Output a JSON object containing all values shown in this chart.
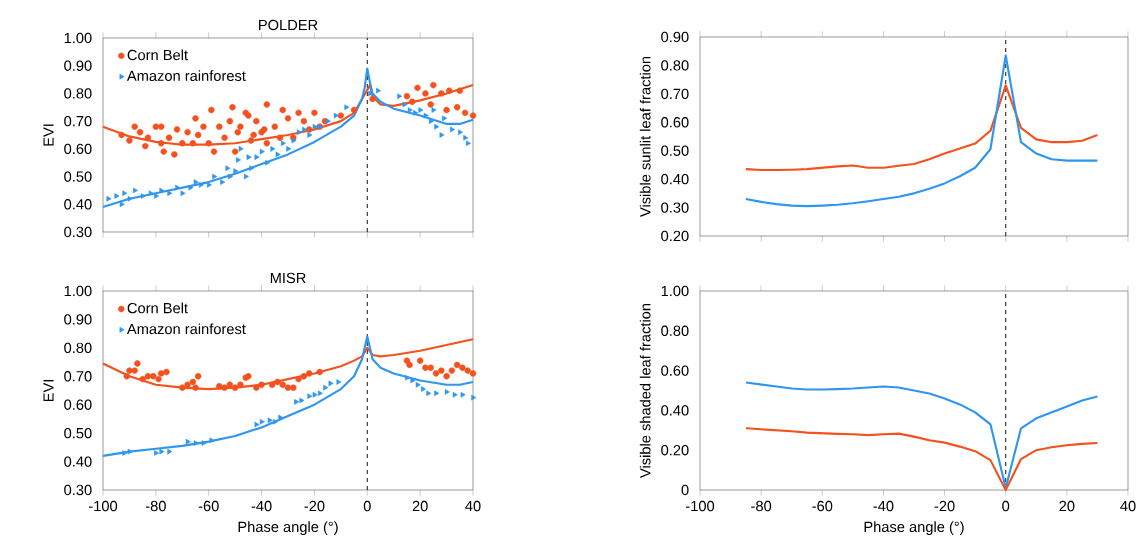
{
  "chart_data": [
    {
      "type": "scatter",
      "title": "POLDER",
      "ylabel": "EVI",
      "xlim": [
        -100,
        40
      ],
      "ylim": [
        0.3,
        1.0
      ],
      "xticks": [
        -100,
        -80,
        -60,
        -40,
        -20,
        0,
        20,
        40
      ],
      "yticks": [
        {
          "value": 0.3,
          "label": "0.30"
        },
        {
          "value": 0.4,
          "label": "0.40"
        },
        {
          "value": 0.5,
          "label": "0.50"
        },
        {
          "value": 0.6,
          "label": "0.60"
        },
        {
          "value": 0.7,
          "label": "0.70"
        },
        {
          "value": 0.8,
          "label": "0.80"
        },
        {
          "value": 0.9,
          "label": "0.90"
        },
        {
          "value": 1.0,
          "label": "1.00"
        }
      ],
      "tick_labels": "y",
      "legend": "top left",
      "ref_lines": [
        {
          "axis": "x",
          "value": 0,
          "color": "#222222",
          "line_style": "dashed"
        }
      ],
      "series": [
        {
          "name": "Corn Belt",
          "type": "scatter",
          "marker": "circle",
          "color": "#f4511e",
          "x": [
            -93,
            -90,
            -88,
            -86,
            -84,
            -83,
            -80,
            -78,
            -78,
            -77,
            -75,
            -73,
            -72,
            -70,
            -68,
            -66,
            -65,
            -64,
            -62,
            -60,
            -59,
            -58,
            -56,
            -54,
            -52,
            -51,
            -50,
            -49,
            -48,
            -46,
            -45,
            -44,
            -43,
            -42,
            -40,
            -39,
            -38,
            -38,
            -35,
            -33,
            -32,
            -30,
            -28,
            -26,
            -24,
            -22,
            -20,
            -18,
            -16,
            -10,
            -5,
            2,
            15,
            17,
            19,
            22,
            24,
            25,
            28,
            30,
            31,
            34,
            35,
            37,
            40
          ],
          "values": [
            0.65,
            0.63,
            0.68,
            0.66,
            0.61,
            0.64,
            0.68,
            0.68,
            0.62,
            0.59,
            0.64,
            0.58,
            0.67,
            0.62,
            0.66,
            0.62,
            0.71,
            0.65,
            0.68,
            0.62,
            0.74,
            0.59,
            0.68,
            0.64,
            0.7,
            0.75,
            0.59,
            0.66,
            0.68,
            0.73,
            0.72,
            0.63,
            0.65,
            0.7,
            0.66,
            0.67,
            0.62,
            0.76,
            0.68,
            0.64,
            0.74,
            0.71,
            0.64,
            0.73,
            0.7,
            0.67,
            0.73,
            0.68,
            0.7,
            0.72,
            0.74,
            0.78,
            0.79,
            0.77,
            0.82,
            0.8,
            0.76,
            0.83,
            0.8,
            0.74,
            0.81,
            0.75,
            0.81,
            0.73,
            0.72
          ]
        },
        {
          "name": "Amazon rainforest",
          "type": "scatter",
          "marker": "triangle",
          "color": "#2e96f0",
          "x": [
            -98,
            -95,
            -93,
            -92,
            -90,
            -88,
            -85,
            -82,
            -80,
            -78,
            -75,
            -72,
            -70,
            -67,
            -65,
            -63,
            -60,
            -58,
            -55,
            -53,
            -52,
            -50,
            -49,
            -48,
            -46,
            -45,
            -44,
            -42,
            -40,
            -38,
            -36,
            -34,
            -32,
            -30,
            -28,
            -26,
            -24,
            -22,
            -20,
            -18,
            -15,
            -12,
            -8,
            1,
            4,
            12,
            14,
            16,
            18,
            20,
            22,
            24,
            25,
            26,
            28,
            29,
            32,
            35,
            37,
            38
          ],
          "values": [
            0.42,
            0.43,
            0.4,
            0.44,
            0.42,
            0.45,
            0.43,
            0.44,
            0.43,
            0.45,
            0.44,
            0.46,
            0.44,
            0.46,
            0.48,
            0.47,
            0.47,
            0.5,
            0.48,
            0.53,
            0.5,
            0.52,
            0.56,
            0.6,
            0.5,
            0.57,
            0.53,
            0.57,
            0.59,
            0.55,
            0.6,
            0.58,
            0.62,
            0.6,
            0.63,
            0.66,
            0.67,
            0.65,
            0.68,
            0.68,
            0.7,
            0.72,
            0.75,
            0.8,
            0.81,
            0.79,
            0.76,
            0.74,
            0.73,
            0.74,
            0.72,
            0.7,
            0.74,
            0.68,
            0.65,
            0.71,
            0.67,
            0.66,
            0.64,
            0.62
          ]
        },
        {
          "type": "line",
          "color": "#f4511e",
          "x": [
            -100,
            -90,
            -80,
            -70,
            -60,
            -50,
            -40,
            -30,
            -20,
            -10,
            -5,
            -2,
            -1,
            0,
            1,
            2,
            5,
            10,
            20,
            30,
            40
          ],
          "values": [
            0.68,
            0.645,
            0.625,
            0.615,
            0.615,
            0.62,
            0.635,
            0.65,
            0.67,
            0.7,
            0.73,
            0.78,
            null,
            null,
            0.83,
            0.79,
            0.76,
            0.755,
            0.775,
            0.8,
            0.83
          ]
        },
        {
          "type": "line",
          "color": "#2e96f0",
          "x": [
            -100,
            -90,
            -80,
            -70,
            -60,
            -50,
            -40,
            -30,
            -20,
            -10,
            -5,
            -2,
            -1,
            0,
            1,
            2,
            5,
            10,
            20,
            30,
            35,
            40
          ],
          "values": [
            0.39,
            0.42,
            0.44,
            0.46,
            0.48,
            0.51,
            0.545,
            0.58,
            0.625,
            0.68,
            0.72,
            0.78,
            0.82,
            0.89,
            0.84,
            0.8,
            0.77,
            0.745,
            0.72,
            0.69,
            0.69,
            0.705
          ]
        }
      ]
    },
    {
      "type": "line",
      "ylabel": "Visible sunlit leaf fraction",
      "xlim": [
        -100,
        40
      ],
      "ylim": [
        0.2,
        0.9
      ],
      "xticks": [
        -100,
        -80,
        -60,
        -40,
        -20,
        0,
        20,
        40
      ],
      "yticks": [
        {
          "value": 0.2,
          "label": "0.20"
        },
        {
          "value": 0.3,
          "label": "0.30"
        },
        {
          "value": 0.4,
          "label": "0.40"
        },
        {
          "value": 0.5,
          "label": "0.50"
        },
        {
          "value": 0.6,
          "label": "0.60"
        },
        {
          "value": 0.7,
          "label": "0.70"
        },
        {
          "value": 0.8,
          "label": "0.80"
        },
        {
          "value": 0.9,
          "label": "0.90"
        }
      ],
      "tick_labels": "y",
      "ref_lines": [
        {
          "axis": "x",
          "value": 0,
          "color": "#222222",
          "line_style": "dashed"
        }
      ],
      "series": [
        {
          "color": "#f4511e",
          "x": [
            -85,
            -80,
            -75,
            -70,
            -65,
            -60,
            -55,
            -50,
            -45,
            -40,
            -35,
            -30,
            -25,
            -20,
            -15,
            -10,
            -5,
            0,
            5,
            10,
            15,
            20,
            25,
            30
          ],
          "values": [
            0.435,
            0.432,
            0.432,
            0.433,
            0.435,
            0.44,
            0.445,
            0.448,
            0.44,
            0.44,
            0.447,
            0.453,
            0.47,
            0.49,
            0.508,
            0.525,
            0.57,
            0.73,
            0.58,
            0.54,
            0.53,
            0.53,
            0.535,
            0.555
          ]
        },
        {
          "color": "#2e96f0",
          "x": [
            -85,
            -80,
            -75,
            -70,
            -65,
            -60,
            -55,
            -50,
            -45,
            -40,
            -35,
            -30,
            -25,
            -20,
            -15,
            -10,
            -5,
            0,
            5,
            10,
            15,
            20,
            25,
            30
          ],
          "values": [
            0.33,
            0.32,
            0.312,
            0.307,
            0.305,
            0.307,
            0.31,
            0.315,
            0.322,
            0.33,
            0.338,
            0.35,
            0.366,
            0.385,
            0.41,
            0.44,
            0.505,
            0.835,
            0.53,
            0.49,
            0.47,
            0.465,
            0.465,
            0.465
          ]
        }
      ]
    },
    {
      "type": "scatter",
      "title": "MISR",
      "xlabel": "Phase angle (°)",
      "ylabel": "EVI",
      "xlim": [
        -100,
        40
      ],
      "ylim": [
        0.3,
        1.0
      ],
      "xticks": [
        -100,
        -80,
        -60,
        -40,
        -20,
        0,
        20,
        40
      ],
      "yticks": [
        {
          "value": 0.3,
          "label": "0.30"
        },
        {
          "value": 0.4,
          "label": "0.40"
        },
        {
          "value": 0.5,
          "label": "0.50"
        },
        {
          "value": 0.6,
          "label": "0.60"
        },
        {
          "value": 0.7,
          "label": "0.70"
        },
        {
          "value": 0.8,
          "label": "0.80"
        },
        {
          "value": 0.9,
          "label": "0.90"
        },
        {
          "value": 1.0,
          "label": "1.00"
        }
      ],
      "legend": "top left",
      "ref_lines": [
        {
          "axis": "x",
          "value": 0,
          "color": "#222222",
          "line_style": "dashed"
        }
      ],
      "series": [
        {
          "name": "Corn Belt",
          "type": "scatter",
          "marker": "circle",
          "color": "#f4511e",
          "x": [
            -91,
            -90,
            -88,
            -87,
            -85,
            -83,
            -81,
            -79,
            -78,
            -76,
            -70,
            -68,
            -66,
            -65,
            -64,
            -56,
            -54,
            -52,
            -50,
            -48,
            -46,
            -45,
            -42,
            -40,
            -36,
            -34,
            -32,
            -30,
            -28,
            -26,
            -24,
            -22,
            -18,
            15,
            16,
            20,
            22,
            24,
            26,
            28,
            30,
            32,
            34,
            36,
            38,
            40
          ],
          "values": [
            0.7,
            0.72,
            0.72,
            0.745,
            0.69,
            0.7,
            0.7,
            0.69,
            0.71,
            0.715,
            0.66,
            0.67,
            0.68,
            0.66,
            0.7,
            0.665,
            0.66,
            0.67,
            0.66,
            0.67,
            0.695,
            0.7,
            0.66,
            0.67,
            0.67,
            0.68,
            0.67,
            0.66,
            0.66,
            0.69,
            0.7,
            0.71,
            0.715,
            0.755,
            0.74,
            0.755,
            0.73,
            0.73,
            0.71,
            0.72,
            0.7,
            0.72,
            0.74,
            0.73,
            0.72,
            0.71
          ]
        },
        {
          "name": "Amazon rainforest",
          "type": "scatter",
          "marker": "triangle",
          "color": "#2e96f0",
          "x": [
            -92,
            -90,
            -80,
            -78,
            -75,
            -68,
            -65,
            -62,
            -59,
            -42,
            -40,
            -37,
            -35,
            -33,
            -27,
            -25,
            -22,
            -20,
            -18,
            -16,
            -14,
            -11,
            15,
            17,
            19,
            21,
            23,
            26,
            30,
            33,
            36,
            40
          ],
          "values": [
            0.43,
            0.435,
            0.43,
            0.435,
            0.435,
            0.47,
            0.465,
            0.465,
            0.475,
            0.53,
            0.54,
            0.545,
            0.54,
            0.555,
            0.61,
            0.615,
            0.63,
            0.635,
            0.64,
            0.66,
            0.675,
            0.68,
            0.695,
            0.685,
            0.67,
            0.655,
            0.64,
            0.64,
            0.645,
            0.635,
            0.635,
            0.625
          ]
        },
        {
          "type": "line",
          "color": "#f4511e",
          "x": [
            -100,
            -90,
            -80,
            -70,
            -60,
            -50,
            -40,
            -30,
            -20,
            -10,
            -5,
            -2,
            0,
            2,
            5,
            10,
            20,
            30,
            40
          ],
          "values": [
            0.745,
            0.7,
            0.67,
            0.66,
            0.655,
            0.66,
            0.67,
            0.69,
            0.71,
            0.735,
            0.755,
            0.77,
            0.8,
            0.775,
            0.77,
            0.775,
            0.79,
            0.81,
            0.83
          ]
        },
        {
          "type": "line",
          "color": "#2e96f0",
          "x": [
            -100,
            -90,
            -80,
            -70,
            -60,
            -50,
            -40,
            -30,
            -20,
            -10,
            -5,
            -2,
            0,
            2,
            5,
            10,
            20,
            30,
            35,
            40
          ],
          "values": [
            0.42,
            0.435,
            0.445,
            0.455,
            0.47,
            0.49,
            0.52,
            0.56,
            0.6,
            0.655,
            0.7,
            0.76,
            0.84,
            0.76,
            0.73,
            0.71,
            0.685,
            0.67,
            0.67,
            0.68
          ]
        }
      ]
    },
    {
      "type": "line",
      "xlabel": "Phase angle (°)",
      "ylabel": "Visible shaded leaf fraction",
      "xlim": [
        -100,
        40
      ],
      "ylim": [
        0,
        1.0
      ],
      "xticks": [
        -100,
        -80,
        -60,
        -40,
        -20,
        0,
        20,
        40
      ],
      "yticks": [
        0,
        {
          "value": 0.2,
          "label": "0.20"
        },
        {
          "value": 0.4,
          "label": "0.40"
        },
        {
          "value": 0.6,
          "label": "0.60"
        },
        {
          "value": 0.8,
          "label": "0.80"
        },
        {
          "value": 1.0,
          "label": "1.00"
        }
      ],
      "ref_lines": [
        {
          "axis": "x",
          "value": 0,
          "color": "#222222",
          "line_style": "dashed"
        }
      ],
      "series": [
        {
          "color": "#2e96f0",
          "x": [
            -85,
            -80,
            -75,
            -70,
            -65,
            -60,
            -55,
            -50,
            -45,
            -40,
            -35,
            -30,
            -25,
            -20,
            -15,
            -10,
            -5,
            0,
            5,
            10,
            15,
            20,
            25,
            30
          ],
          "values": [
            0.54,
            0.53,
            0.52,
            0.51,
            0.505,
            0.505,
            0.507,
            0.51,
            0.515,
            0.52,
            0.515,
            0.5,
            0.485,
            0.46,
            0.43,
            0.39,
            0.33,
            0.01,
            0.31,
            0.36,
            0.39,
            0.42,
            0.45,
            0.47
          ]
        },
        {
          "color": "#f4511e",
          "x": [
            -85,
            -80,
            -75,
            -70,
            -65,
            -60,
            -55,
            -50,
            -45,
            -40,
            -35,
            -30,
            -25,
            -20,
            -15,
            -10,
            -5,
            0,
            5,
            10,
            15,
            20,
            25,
            30
          ],
          "values": [
            0.31,
            0.305,
            0.3,
            0.295,
            0.288,
            0.285,
            0.282,
            0.28,
            0.276,
            0.28,
            0.283,
            0.268,
            0.25,
            0.238,
            0.218,
            0.195,
            0.15,
            0.0,
            0.155,
            0.2,
            0.215,
            0.225,
            0.232,
            0.236
          ]
        }
      ]
    }
  ]
}
